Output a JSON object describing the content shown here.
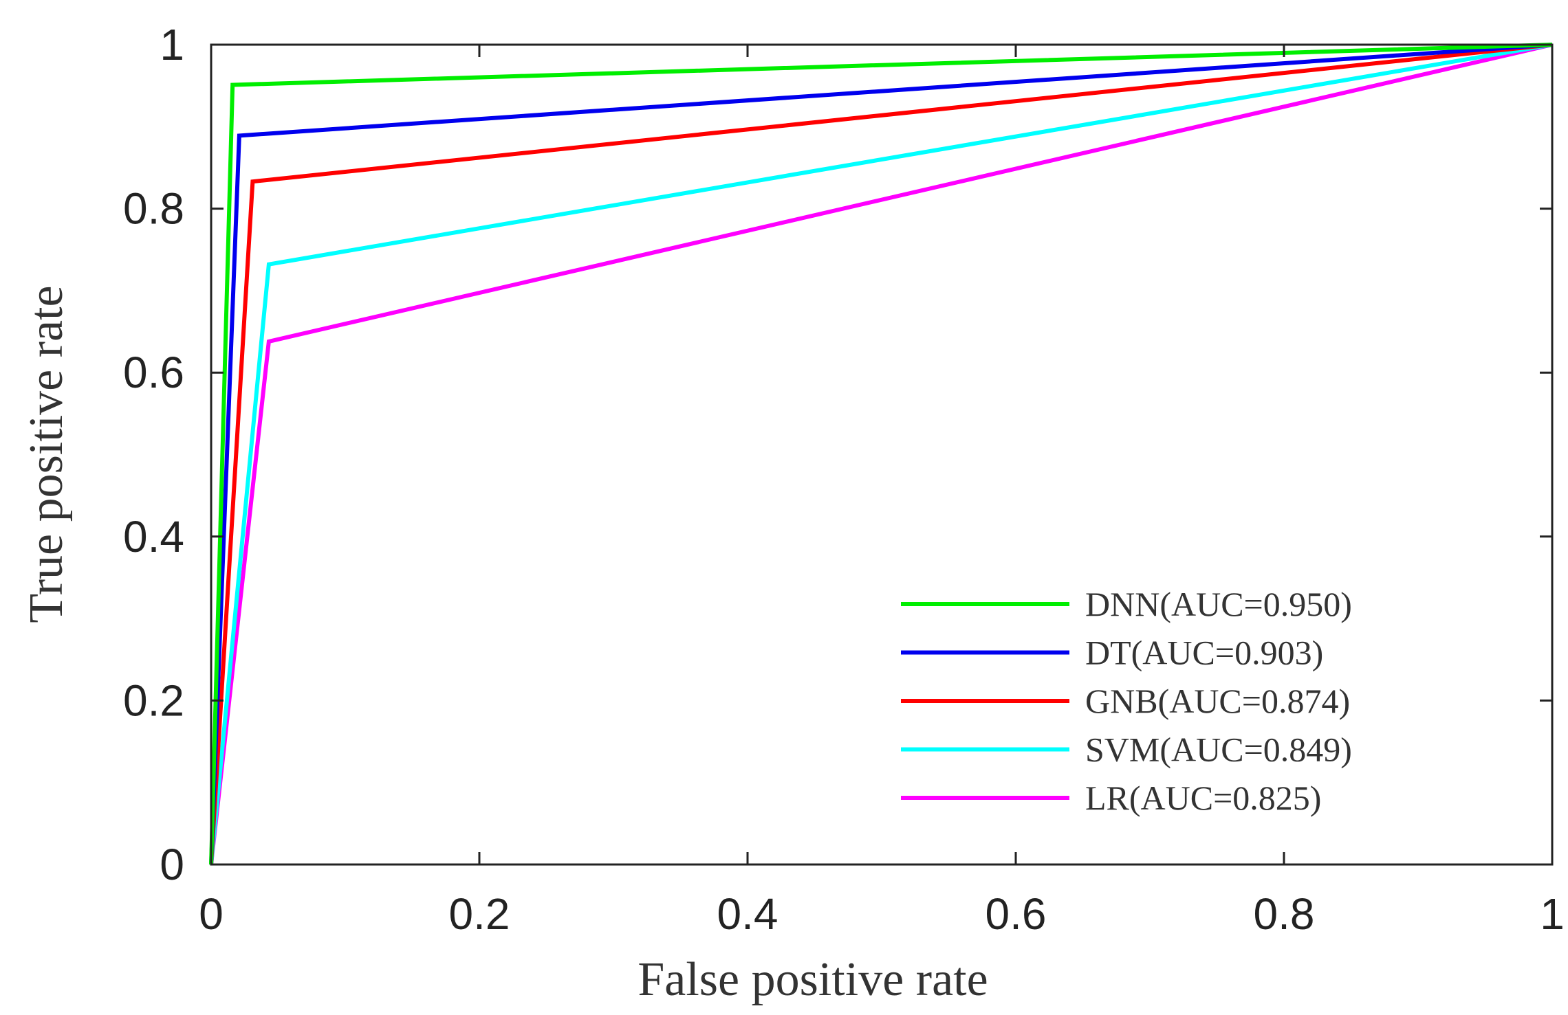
{
  "chart_data": {
    "type": "line",
    "title": "",
    "xlabel": "False positive rate",
    "ylabel": "True positive rate",
    "xlim": [
      0,
      1
    ],
    "ylim": [
      0,
      1
    ],
    "x_ticks": [
      "0",
      "0.2",
      "0.4",
      "0.6",
      "0.8",
      "1"
    ],
    "y_ticks": [
      "0",
      "0.2",
      "0.4",
      "0.6",
      "0.8",
      "1"
    ],
    "grid": false,
    "legend_position": "bottom-right",
    "series": [
      {
        "name": "DNN",
        "label": "DNN(AUC=0.950)",
        "color": "#00ee00",
        "x": [
          0,
          0.016,
          1
        ],
        "y": [
          0,
          0.951,
          1
        ]
      },
      {
        "name": "DT",
        "label": "DT(AUC=0.903)",
        "color": "#0000ee",
        "x": [
          0,
          0.021,
          1
        ],
        "y": [
          0,
          0.889,
          1
        ]
      },
      {
        "name": "GNB",
        "label": "GNB(AUC=0.874)",
        "color": "#ff0000",
        "x": [
          0,
          0.031,
          1
        ],
        "y": [
          0,
          0.833,
          1
        ]
      },
      {
        "name": "SVM",
        "label": "SVM(AUC=0.849)",
        "color": "#00ffff",
        "x": [
          0,
          0.043,
          1
        ],
        "y": [
          0,
          0.732,
          1
        ]
      },
      {
        "name": "LR",
        "label": "LR(AUC=0.825)",
        "color": "#ff00ff",
        "x": [
          0,
          0.043,
          1
        ],
        "y": [
          0,
          0.638,
          1
        ]
      }
    ]
  }
}
